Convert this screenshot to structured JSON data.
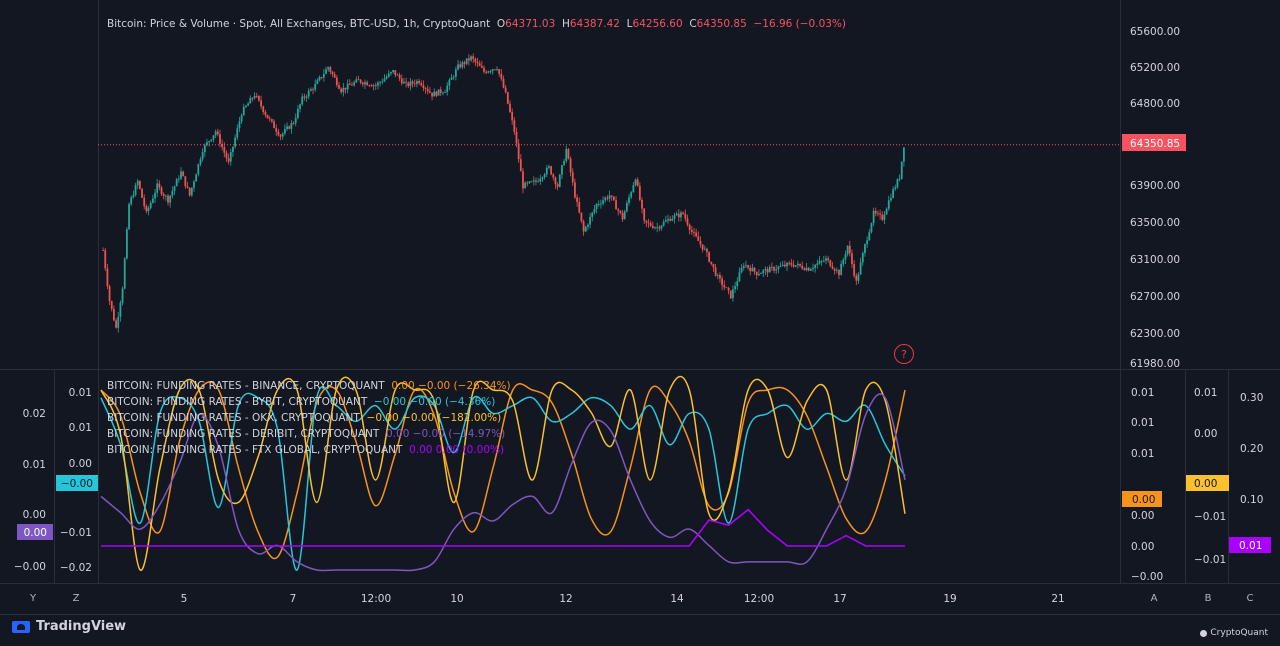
{
  "main_legend": {
    "title": "Bitcoin: Price & Volume · Spot, All Exchanges, BTC-USD, 1h, CryptoQuant",
    "o_label": "O",
    "o_value": "64371.03",
    "h_label": "H",
    "h_value": "64387.42",
    "l_label": "L",
    "l_value": "64256.60",
    "c_label": "C",
    "c_value": "64350.85",
    "change": "−16.96 (−0.03%)"
  },
  "funding_legends": [
    {
      "label": "BITCOIN: FUNDING RATES - BINANCE, CRYPTOQUANT",
      "value": "0.00 −0.00 (−26.34%)",
      "color": "#f7931a"
    },
    {
      "label": "BITCOIN: FUNDING RATES - BYBIT, CRYPTOQUANT",
      "value": "−0.00 −0.00 (−4.36%)",
      "color": "#26c6da"
    },
    {
      "label": "BITCOIN: FUNDING RATES - OKX, CRYPTOQUANT",
      "value": "−0.00 −0.00 (−182.00%)",
      "color": "#fbc02d"
    },
    {
      "label": "BITCOIN: FUNDING RATES - DERIBIT, CRYPTOQUANT",
      "value": "0.00 −0.00 (−14.97%)",
      "color": "#7e57c2"
    },
    {
      "label": "BITCOIN: FUNDING RATES - FTX GLOBAL, CRYPTOQUANT",
      "value": "0.00 0.00 (0.00%)",
      "color": "#aa00ff"
    }
  ],
  "price_axis": {
    "ticks": [
      "65600.00",
      "65200.00",
      "64800.00",
      "64350.85",
      "63900.00",
      "63500.00",
      "63100.00",
      "62700.00",
      "62300.00",
      "61980.00"
    ],
    "current_price": "64350.85",
    "current_price_color": "#f7525f"
  },
  "left_axis_z": {
    "ticks": [
      "0.02",
      "0.01",
      "0.00",
      "−0.00"
    ],
    "badge": "0.00",
    "badge_color": "#7e57c2"
  },
  "left_axis_y": {
    "ticks": [
      "0.01",
      "0.01",
      "0.00",
      "−0.01",
      "−0.02"
    ],
    "badge": "−0.00",
    "badge_color": "#26c6da"
  },
  "right_axis_a": {
    "ticks": [
      "0.01",
      "0.01",
      "0.01",
      "0.00",
      "0.00",
      "−0.00"
    ],
    "badge": "0.00",
    "badge_color": "#f7931a"
  },
  "right_axis_b": {
    "ticks": [
      "0.01",
      "0.00",
      "−0.01",
      "−0.01"
    ],
    "badge": "0.00",
    "badge_color": "#fbc02d"
  },
  "right_axis_c": {
    "ticks": [
      "0.30",
      "0.20",
      "0.10"
    ],
    "badge": "0.01",
    "badge_color": "#aa00ff"
  },
  "time_axis": {
    "ticks": [
      "5",
      "7",
      "12:00",
      "10",
      "12",
      "14",
      "12:00",
      "17",
      "19",
      "21"
    ]
  },
  "axis_letters": {
    "y": "Y",
    "z": "Z",
    "a": "A",
    "b": "B",
    "c": "C"
  },
  "help_icon": "?",
  "branding": {
    "tradingview": "TradingView",
    "cryptoquant": "CryptoQuant"
  },
  "chart_data": {
    "type": "candlestick",
    "title": "Bitcoin: Price & Volume · Spot, All Exchanges, BTC-USD, 1h, CryptoQuant",
    "ylim": [
      61980,
      65800
    ],
    "grid": false,
    "up_color": "#26a69a",
    "down_color": "#ef5350",
    "price_path": [
      [
        0,
        63200
      ],
      [
        3,
        62650
      ],
      [
        6,
        62350
      ],
      [
        9,
        62800
      ],
      [
        12,
        63700
      ],
      [
        16,
        63950
      ],
      [
        20,
        63600
      ],
      [
        25,
        63900
      ],
      [
        30,
        63750
      ],
      [
        36,
        64050
      ],
      [
        40,
        63800
      ],
      [
        46,
        64300
      ],
      [
        52,
        64500
      ],
      [
        58,
        64150
      ],
      [
        64,
        64700
      ],
      [
        70,
        64900
      ],
      [
        76,
        64650
      ],
      [
        82,
        64450
      ],
      [
        88,
        64600
      ],
      [
        92,
        64850
      ],
      [
        98,
        65000
      ],
      [
        104,
        65200
      ],
      [
        110,
        64950
      ],
      [
        118,
        65050
      ],
      [
        126,
        65000
      ],
      [
        134,
        65150
      ],
      [
        140,
        65000
      ],
      [
        146,
        65050
      ],
      [
        152,
        64900
      ],
      [
        158,
        64950
      ],
      [
        164,
        65200
      ],
      [
        170,
        65300
      ],
      [
        176,
        65150
      ],
      [
        182,
        65200
      ],
      [
        186,
        64900
      ],
      [
        190,
        64500
      ],
      [
        194,
        63900
      ],
      [
        200,
        63950
      ],
      [
        206,
        64100
      ],
      [
        210,
        63900
      ],
      [
        214,
        64300
      ],
      [
        218,
        63800
      ],
      [
        222,
        63400
      ],
      [
        228,
        63700
      ],
      [
        234,
        63800
      ],
      [
        240,
        63550
      ],
      [
        246,
        64000
      ],
      [
        250,
        63500
      ],
      [
        256,
        63450
      ],
      [
        262,
        63550
      ],
      [
        268,
        63600
      ],
      [
        272,
        63400
      ],
      [
        278,
        63200
      ],
      [
        284,
        62900
      ],
      [
        290,
        62700
      ],
      [
        296,
        63050
      ],
      [
        302,
        62950
      ],
      [
        310,
        63000
      ],
      [
        318,
        63050
      ],
      [
        326,
        63000
      ],
      [
        334,
        63100
      ],
      [
        340,
        62950
      ],
      [
        344,
        63250
      ],
      [
        348,
        62850
      ],
      [
        352,
        63250
      ],
      [
        356,
        63600
      ],
      [
        360,
        63550
      ],
      [
        364,
        63800
      ],
      [
        368,
        64000
      ],
      [
        370,
        64350
      ]
    ],
    "series": [
      {
        "name": "BITCOIN: FUNDING RATES - BINANCE, CRYPTOQUANT",
        "color": "#f7931a",
        "axis": "A",
        "values": [
          0.012,
          0.01,
          0.004,
          0.001,
          0.008,
          0.012,
          0.012,
          0.006,
          0.001,
          -0.001,
          0.004,
          0.011,
          0.012,
          0.008,
          0.003,
          0.007,
          0.012,
          0.01,
          0.004,
          0.001,
          0.006,
          0.012,
          0.012,
          0.011,
          0.007,
          0.002,
          0.001,
          0.006,
          0.012,
          0.011,
          0.008,
          0.003,
          0.004,
          0.011,
          0.012,
          0.012,
          0.01,
          0.006,
          0.002,
          0.001,
          0.005,
          0.012
        ]
      },
      {
        "name": "BITCOIN: FUNDING RATES - BYBIT, CRYPTOQUANT",
        "color": "#26c6da",
        "axis": "Y",
        "values": [
          0.01,
          0.004,
          -0.006,
          0.008,
          0.01,
          0.007,
          -0.004,
          0.009,
          0.01,
          0.006,
          -0.012,
          0.01,
          0.009,
          0.007,
          0.009,
          0.006,
          0.01,
          0.009,
          0.003,
          0.01,
          0.008,
          0.009,
          0.01,
          0.007,
          0.008,
          0.01,
          0.009,
          0.006,
          0.009,
          0.004,
          0.008,
          0.006,
          -0.006,
          0.006,
          0.008,
          0.009,
          0.006,
          0.008,
          0.007,
          0.009,
          0.004,
          0.0
        ]
      },
      {
        "name": "BITCOIN: FUNDING RATES - OKX, CRYPTOQUANT",
        "color": "#fbc02d",
        "axis": "B",
        "values": [
          0.012,
          0.008,
          -0.004,
          0.005,
          0.012,
          0.012,
          0.004,
          0.002,
          0.006,
          0.012,
          0.012,
          0.002,
          0.012,
          0.012,
          0.004,
          0.012,
          0.012,
          0.011,
          0.002,
          0.012,
          0.012,
          0.011,
          0.004,
          0.012,
          0.012,
          0.01,
          0.007,
          0.012,
          0.004,
          0.012,
          0.012,
          0.001,
          0.003,
          0.012,
          0.012,
          0.006,
          0.011,
          0.012,
          0.004,
          0.012,
          0.011,
          0.001
        ]
      },
      {
        "name": "BITCOIN: FUNDING RATES - DERIBIT, CRYPTOQUANT",
        "color": "#7e57c2",
        "axis": "Z",
        "values": [
          0.0,
          -0.002,
          -0.004,
          -0.001,
          0.004,
          0.01,
          0.006,
          -0.004,
          -0.007,
          -0.006,
          -0.008,
          -0.009,
          -0.009,
          -0.009,
          -0.009,
          -0.009,
          -0.009,
          -0.008,
          -0.004,
          -0.002,
          -0.003,
          -0.001,
          0.0,
          -0.002,
          0.004,
          0.009,
          0.008,
          0.002,
          -0.003,
          -0.005,
          -0.004,
          -0.006,
          -0.008,
          -0.008,
          -0.008,
          -0.008,
          -0.008,
          -0.004,
          0.001,
          0.01,
          0.012,
          0.002
        ]
      },
      {
        "name": "BITCOIN: FUNDING RATES - FTX GLOBAL, CRYPTOQUANT",
        "color": "#aa00ff",
        "axis": "C",
        "values": [
          0.01,
          0.01,
          0.01,
          0.01,
          0.01,
          0.01,
          0.01,
          0.01,
          0.01,
          0.01,
          0.01,
          0.01,
          0.01,
          0.01,
          0.01,
          0.01,
          0.01,
          0.01,
          0.01,
          0.01,
          0.01,
          0.01,
          0.01,
          0.01,
          0.01,
          0.01,
          0.01,
          0.01,
          0.01,
          0.01,
          0.01,
          0.06,
          0.05,
          0.08,
          0.04,
          0.01,
          0.01,
          0.01,
          0.03,
          0.01,
          0.01,
          0.01
        ]
      }
    ]
  }
}
